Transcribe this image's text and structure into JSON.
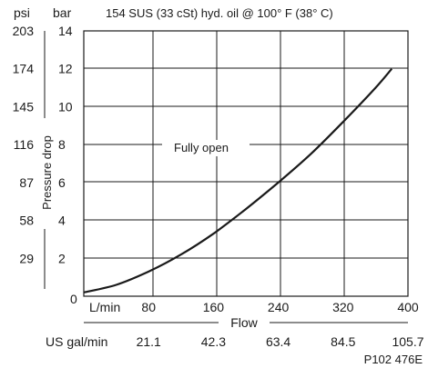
{
  "chart_data": {
    "type": "line",
    "title": "154 SUS (33 cSt) hyd. oil @ 100° F (38° C)",
    "xlabel": "Flow",
    "ylabel": "Pressure drop",
    "x_unit": "L/min",
    "x_secondary_unit": "US gal/min",
    "y_unit_secondary": "psi",
    "y_unit": "bar",
    "xlim": [
      0,
      400
    ],
    "ylim": [
      0,
      14
    ],
    "x_ticks": [
      80,
      160,
      240,
      320,
      400
    ],
    "x_secondary_ticks": [
      "21.1",
      "42.3",
      "63.4",
      "84.5",
      "105.7"
    ],
    "y_ticks": [
      "2",
      "4",
      "6",
      "8",
      "10",
      "12",
      "14"
    ],
    "y_zero_label": "0",
    "y_secondary_ticks": [
      "29",
      "58",
      "87",
      "116",
      "145",
      "174",
      "203"
    ],
    "grid": true,
    "series": [
      {
        "name": "Fully open",
        "x": [
          0,
          40,
          80,
          120,
          160,
          200,
          240,
          280,
          320,
          360,
          380
        ],
        "y": [
          0.2,
          0.6,
          1.3,
          2.2,
          3.3,
          4.6,
          6.0,
          7.5,
          9.2,
          11.0,
          12.0
        ]
      }
    ]
  },
  "figure_code": "P102 476E",
  "colors": {
    "line": "#1a1a1a",
    "grid": "#1a1a1a",
    "background": "#ffffff"
  }
}
